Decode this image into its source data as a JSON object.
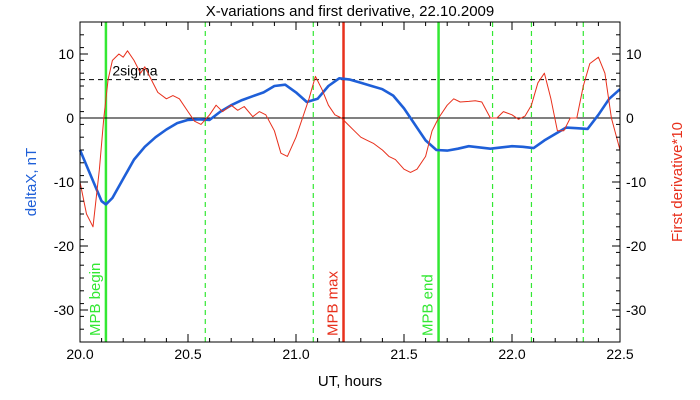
{
  "chart_data": {
    "type": "line",
    "title": "X-variations and first derivative, 22.10.2009",
    "xlabel": "UT, hours",
    "ylabel_left": "deltaX, nT",
    "ylabel_right": "First derivative*10",
    "xlim": [
      20.0,
      22.5
    ],
    "ylim": [
      -35,
      15
    ],
    "x_ticks": [
      "20.0",
      "20.5",
      "21.0",
      "21.5",
      "22.0",
      "22.5"
    ],
    "y_ticks": [
      "10",
      "0",
      "-10",
      "-20",
      "-30"
    ],
    "sigma_label": "2sigma",
    "sigma_level": 6,
    "colors": {
      "deltaX": "#1e5fd8",
      "derivative": "#e8301c",
      "event": "#33e833",
      "max": "#e8301c"
    },
    "series": [
      {
        "name": "deltaX, nT",
        "color": "#1e5fd8",
        "x": [
          20.0,
          20.05,
          20.1,
          20.12,
          20.15,
          20.2,
          20.25,
          20.3,
          20.35,
          20.4,
          20.45,
          20.5,
          20.55,
          20.6,
          20.65,
          20.7,
          20.75,
          20.8,
          20.85,
          20.9,
          20.95,
          21.0,
          21.05,
          21.1,
          21.15,
          21.2,
          21.25,
          21.3,
          21.35,
          21.4,
          21.45,
          21.5,
          21.55,
          21.6,
          21.65,
          21.7,
          21.75,
          21.8,
          21.85,
          21.9,
          21.95,
          22.0,
          22.05,
          22.1,
          22.15,
          22.2,
          22.25,
          22.3,
          22.35,
          22.4,
          22.45,
          22.5
        ],
        "y": [
          -5,
          -9,
          -13,
          -13.5,
          -12.5,
          -9.5,
          -6.5,
          -4.5,
          -3,
          -1.8,
          -0.8,
          -0.3,
          -0.2,
          -0.3,
          1,
          2,
          2.8,
          3.4,
          4,
          5,
          5.2,
          4,
          2.5,
          3,
          5,
          6.2,
          6,
          5.5,
          5,
          4.5,
          3.5,
          1.5,
          -1,
          -3.5,
          -5,
          -5.1,
          -4.8,
          -4.4,
          -4.6,
          -4.8,
          -4.6,
          -4.4,
          -4.5,
          -4.7,
          -3.5,
          -2.5,
          -1.5,
          -1.6,
          -1.7,
          0.5,
          3,
          4.5
        ]
      },
      {
        "name": "First derivative*10",
        "color": "#e8301c",
        "x": [
          20.0,
          20.03,
          20.06,
          20.09,
          20.11,
          20.13,
          20.15,
          20.18,
          20.2,
          20.22,
          20.25,
          20.28,
          20.3,
          20.33,
          20.36,
          20.4,
          20.43,
          20.46,
          20.5,
          20.53,
          20.56,
          20.6,
          20.63,
          20.66,
          20.7,
          20.73,
          20.76,
          20.8,
          20.83,
          20.86,
          20.9,
          20.93,
          20.96,
          21.0,
          21.03,
          21.06,
          21.09,
          21.12,
          21.15,
          21.18,
          21.21,
          21.24,
          21.27,
          21.3,
          21.33,
          21.36,
          21.4,
          21.43,
          21.46,
          21.5,
          21.53,
          21.56,
          21.6,
          21.63,
          21.66,
          21.7,
          21.73,
          21.76,
          21.8,
          21.83,
          21.86,
          21.9,
          21.93,
          21.96,
          22.0,
          22.03,
          22.06,
          22.09,
          22.12,
          22.15,
          22.18,
          22.21,
          22.24,
          22.27,
          22.3,
          22.33,
          22.36,
          22.4,
          22.43,
          22.46,
          22.5
        ],
        "y": [
          -10,
          -15,
          -17,
          -8,
          0,
          6,
          9,
          10,
          9.5,
          10.5,
          9,
          7,
          8,
          6,
          4,
          3,
          3.5,
          3,
          1,
          -0.5,
          -1,
          0.5,
          2,
          1,
          2,
          1.2,
          1.8,
          0.2,
          1,
          0.5,
          -2,
          -5.5,
          -6,
          -3,
          0,
          3,
          6.5,
          4.5,
          2,
          0.5,
          0,
          -1,
          -2,
          -3,
          -3.5,
          -4,
          -5,
          -6,
          -6.5,
          -8,
          -8.5,
          -8,
          -6,
          -2,
          0,
          2,
          3,
          2.5,
          2.6,
          2.7,
          2.5,
          0,
          0,
          1,
          0.5,
          -0.2,
          0.3,
          2,
          5.5,
          7,
          3,
          -2,
          -2,
          0,
          0,
          5,
          8.5,
          9.5,
          7,
          0,
          -5
        ]
      }
    ],
    "vlines": [
      {
        "x": 20.12,
        "style": "solid",
        "color": "#33e833",
        "label": "MPB begin"
      },
      {
        "x": 20.58,
        "style": "dashed",
        "color": "#33e833"
      },
      {
        "x": 21.08,
        "style": "dashed",
        "color": "#33e833"
      },
      {
        "x": 21.22,
        "style": "solid",
        "color": "#e8301c",
        "label": "MPB max"
      },
      {
        "x": 21.66,
        "style": "solid",
        "color": "#33e833",
        "label": "MPB end"
      },
      {
        "x": 21.91,
        "style": "dashed",
        "color": "#33e833"
      },
      {
        "x": 22.09,
        "style": "dashed",
        "color": "#33e833"
      },
      {
        "x": 22.33,
        "style": "dashed",
        "color": "#33e833"
      }
    ]
  }
}
